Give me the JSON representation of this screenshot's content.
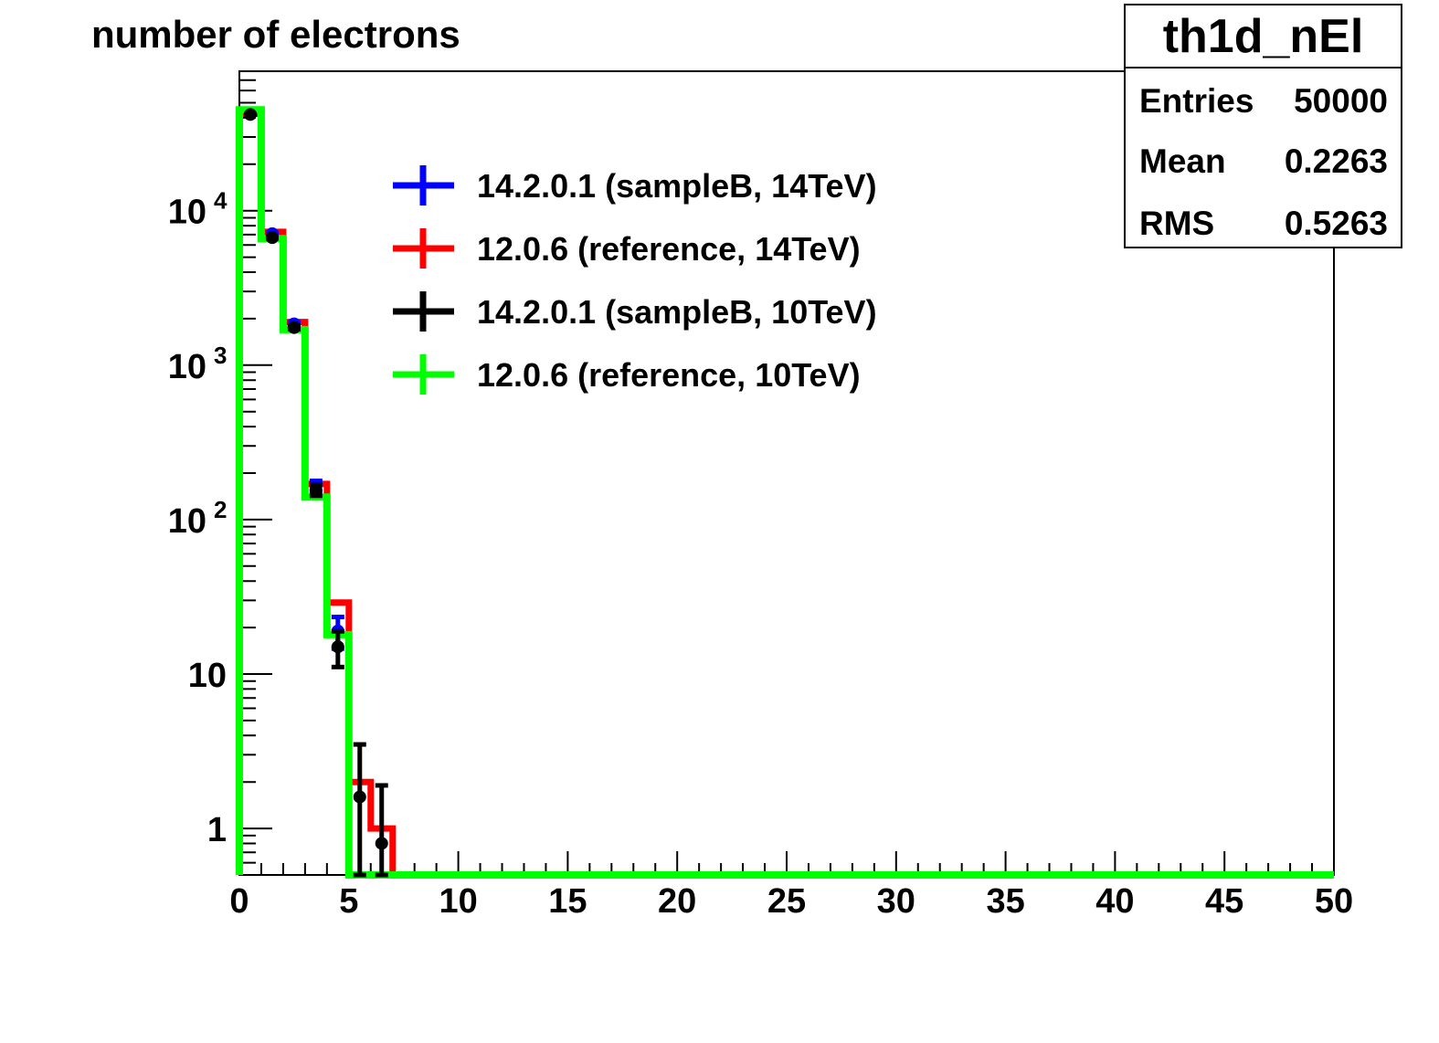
{
  "chart_data": {
    "type": "histogram",
    "title": "number of electrons",
    "xlim": [
      0,
      50
    ],
    "ylim": [
      0.5,
      80000
    ],
    "y_scale": "log",
    "x_ticks": [
      "0",
      "5",
      "10",
      "15",
      "20",
      "25",
      "30",
      "35",
      "40",
      "45",
      "50"
    ],
    "y_ticks": [
      {
        "value": 1,
        "label": "1",
        "sup": ""
      },
      {
        "value": 10,
        "label": "10",
        "sup": ""
      },
      {
        "value": 100,
        "label": "10",
        "sup": "2"
      },
      {
        "value": 1000,
        "label": "10",
        "sup": "3"
      },
      {
        "value": 10000,
        "label": "10",
        "sup": "4"
      }
    ],
    "bin_edges": [
      0,
      1,
      2,
      3,
      4,
      5,
      6,
      7,
      8
    ],
    "series": [
      {
        "name": "14.2.0.1 (sampleB, 14TeV)",
        "color": "#0000ff",
        "style": "points",
        "values": [
          42500,
          7100,
          1850,
          165,
          19,
          0,
          0,
          0
        ],
        "errors": [
          206,
          84,
          43,
          13,
          4.4,
          0,
          0,
          0
        ]
      },
      {
        "name": "12.0.6 (reference, 14TeV)",
        "color": "#ff0000",
        "style": "line",
        "values": [
          42500,
          7300,
          1900,
          170,
          29,
          2,
          1,
          0
        ]
      },
      {
        "name": "14.2.0.1 (sampleB, 10TeV)",
        "color": "#000000",
        "style": "points",
        "values": [
          42000,
          6700,
          1750,
          155,
          15,
          1.6,
          0.8,
          0
        ],
        "errors": [
          205,
          82,
          42,
          12.4,
          3.9,
          1.9,
          1.1,
          0
        ]
      },
      {
        "name": "12.0.6 (reference, 10TeV)",
        "color": "#00ff00",
        "style": "line",
        "values": [
          45000,
          6600,
          1700,
          140,
          18,
          0,
          0,
          0
        ]
      }
    ],
    "legend_position": "top-center",
    "stats": {
      "name": "th1d_nEl",
      "rows": [
        {
          "label": "Entries",
          "value": "50000"
        },
        {
          "label": "Mean",
          "value": "0.2263"
        },
        {
          "label": "RMS",
          "value": "0.5263"
        }
      ]
    }
  }
}
